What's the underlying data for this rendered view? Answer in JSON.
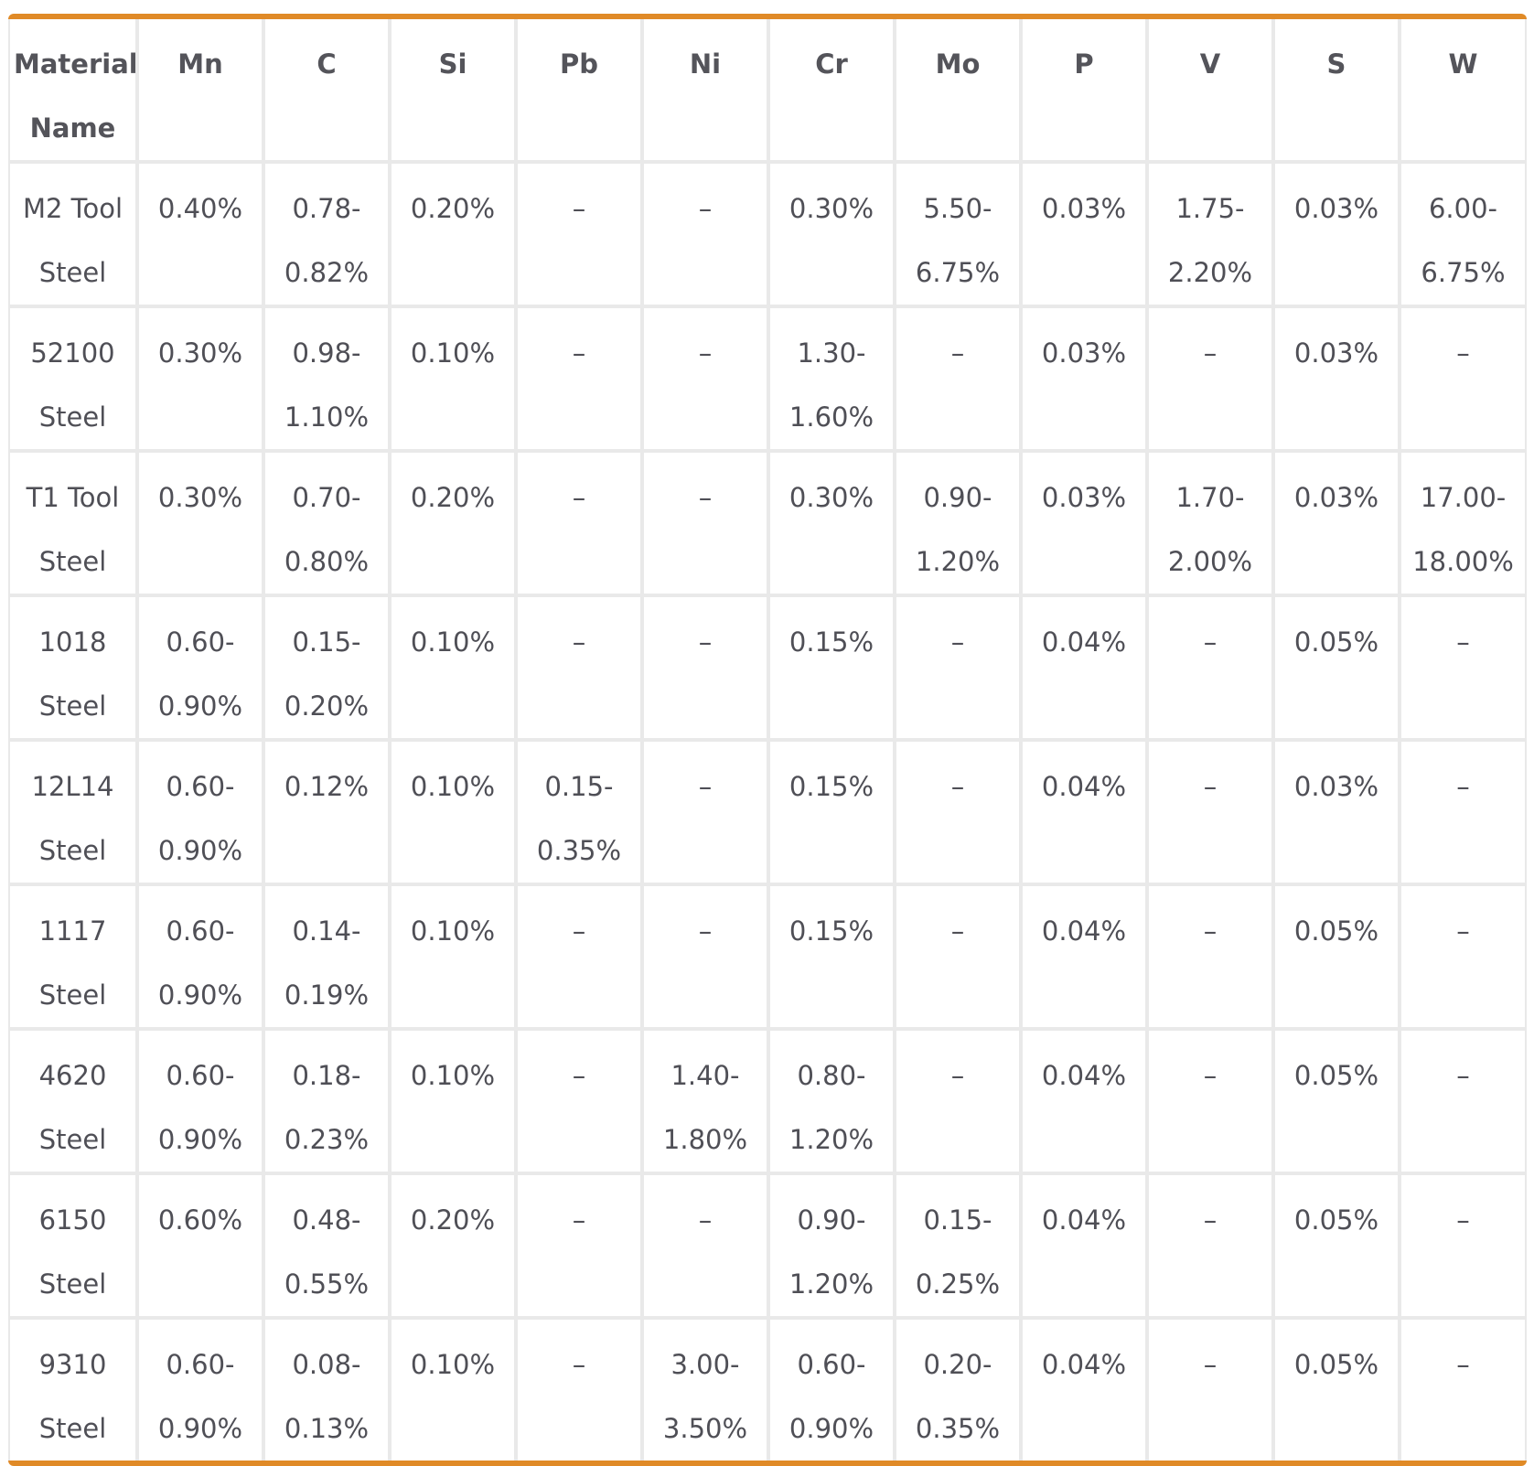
{
  "table": {
    "headers": [
      "Material\nName",
      "Mn",
      "C",
      "Si",
      "Pb",
      "Ni",
      "Cr",
      "Mo",
      "P",
      "V",
      "S",
      "W"
    ],
    "rows": [
      [
        "M2 Tool\nSteel",
        "0.40%",
        "0.78-\n0.82%",
        "0.20%",
        "–",
        "–",
        "0.30%",
        "5.50-\n6.75%",
        "0.03%",
        "1.75-\n2.20%",
        "0.03%",
        "6.00-\n6.75%"
      ],
      [
        "52100\nSteel",
        "0.30%",
        "0.98-\n1.10%",
        "0.10%",
        "–",
        "–",
        "1.30-\n1.60%",
        "–",
        "0.03%",
        "–",
        "0.03%",
        "–"
      ],
      [
        "T1 Tool\nSteel",
        "0.30%",
        "0.70-\n0.80%",
        "0.20%",
        "–",
        "–",
        "0.30%",
        "0.90-\n1.20%",
        "0.03%",
        "1.70-\n2.00%",
        "0.03%",
        "17.00-\n18.00%"
      ],
      [
        "1018\nSteel",
        "0.60-\n0.90%",
        "0.15-\n0.20%",
        "0.10%",
        "–",
        "–",
        "0.15%",
        "–",
        "0.04%",
        "–",
        "0.05%",
        "–"
      ],
      [
        "12L14\nSteel",
        "0.60-\n0.90%",
        "0.12%",
        "0.10%",
        "0.15-\n0.35%",
        "–",
        "0.15%",
        "–",
        "0.04%",
        "–",
        "0.03%",
        "–"
      ],
      [
        "1117 Steel",
        "0.60-\n0.90%",
        "0.14-\n0.19%",
        "0.10%",
        "–",
        "–",
        "0.15%",
        "–",
        "0.04%",
        "–",
        "0.05%",
        "–"
      ],
      [
        "4620\nSteel",
        "0.60-\n0.90%",
        "0.18-\n0.23%",
        "0.10%",
        "–",
        "1.40-\n1.80%",
        "0.80-\n1.20%",
        "–",
        "0.04%",
        "–",
        "0.05%",
        "–"
      ],
      [
        "6150\nSteel",
        "0.60%",
        "0.48-\n0.55%",
        "0.20%",
        "–",
        "–",
        "0.90-\n1.20%",
        "0.15-\n0.25%",
        "0.04%",
        "–",
        "0.05%",
        "–"
      ],
      [
        "9310\nSteel",
        "0.60-\n0.90%",
        "0.08-\n0.13%",
        "0.10%",
        "–",
        "3.00-\n3.50%",
        "0.60-\n0.90%",
        "0.20-\n0.35%",
        "0.04%",
        "–",
        "0.05%",
        "–"
      ]
    ]
  },
  "colors": {
    "accent_border": "#e08a27",
    "grid_line": "#e9e9e9",
    "text": "#4f4f56"
  }
}
